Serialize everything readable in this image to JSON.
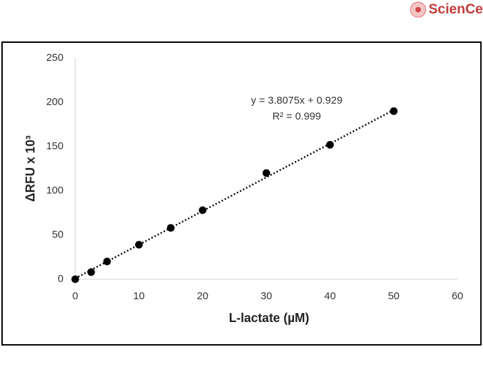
{
  "logo": "ScienCell",
  "chart_data": {
    "type": "scatter",
    "x_label": "L-lactate (µM)",
    "y_label": "ΔRFU x 10³",
    "x": [
      0,
      2.5,
      5,
      10,
      15,
      20,
      30,
      40,
      50
    ],
    "series": [
      {
        "color": "#000000",
        "values": [
          0,
          8,
          20,
          39,
          58,
          78,
          120,
          152,
          190
        ]
      }
    ],
    "trendline": {
      "equation": "y = 3.8075x + 0.929",
      "slope": 3.8075,
      "intercept": 0.929,
      "r_squared": 0.999,
      "r_squared_label": "R² = 0.999",
      "style": "dotted"
    },
    "xlim": [
      0,
      60
    ],
    "xticks": [
      0,
      10,
      20,
      30,
      40,
      50,
      60
    ],
    "ylim": [
      0,
      250
    ],
    "yticks": [
      0,
      50,
      100,
      150,
      200,
      250
    ],
    "grid": false
  }
}
